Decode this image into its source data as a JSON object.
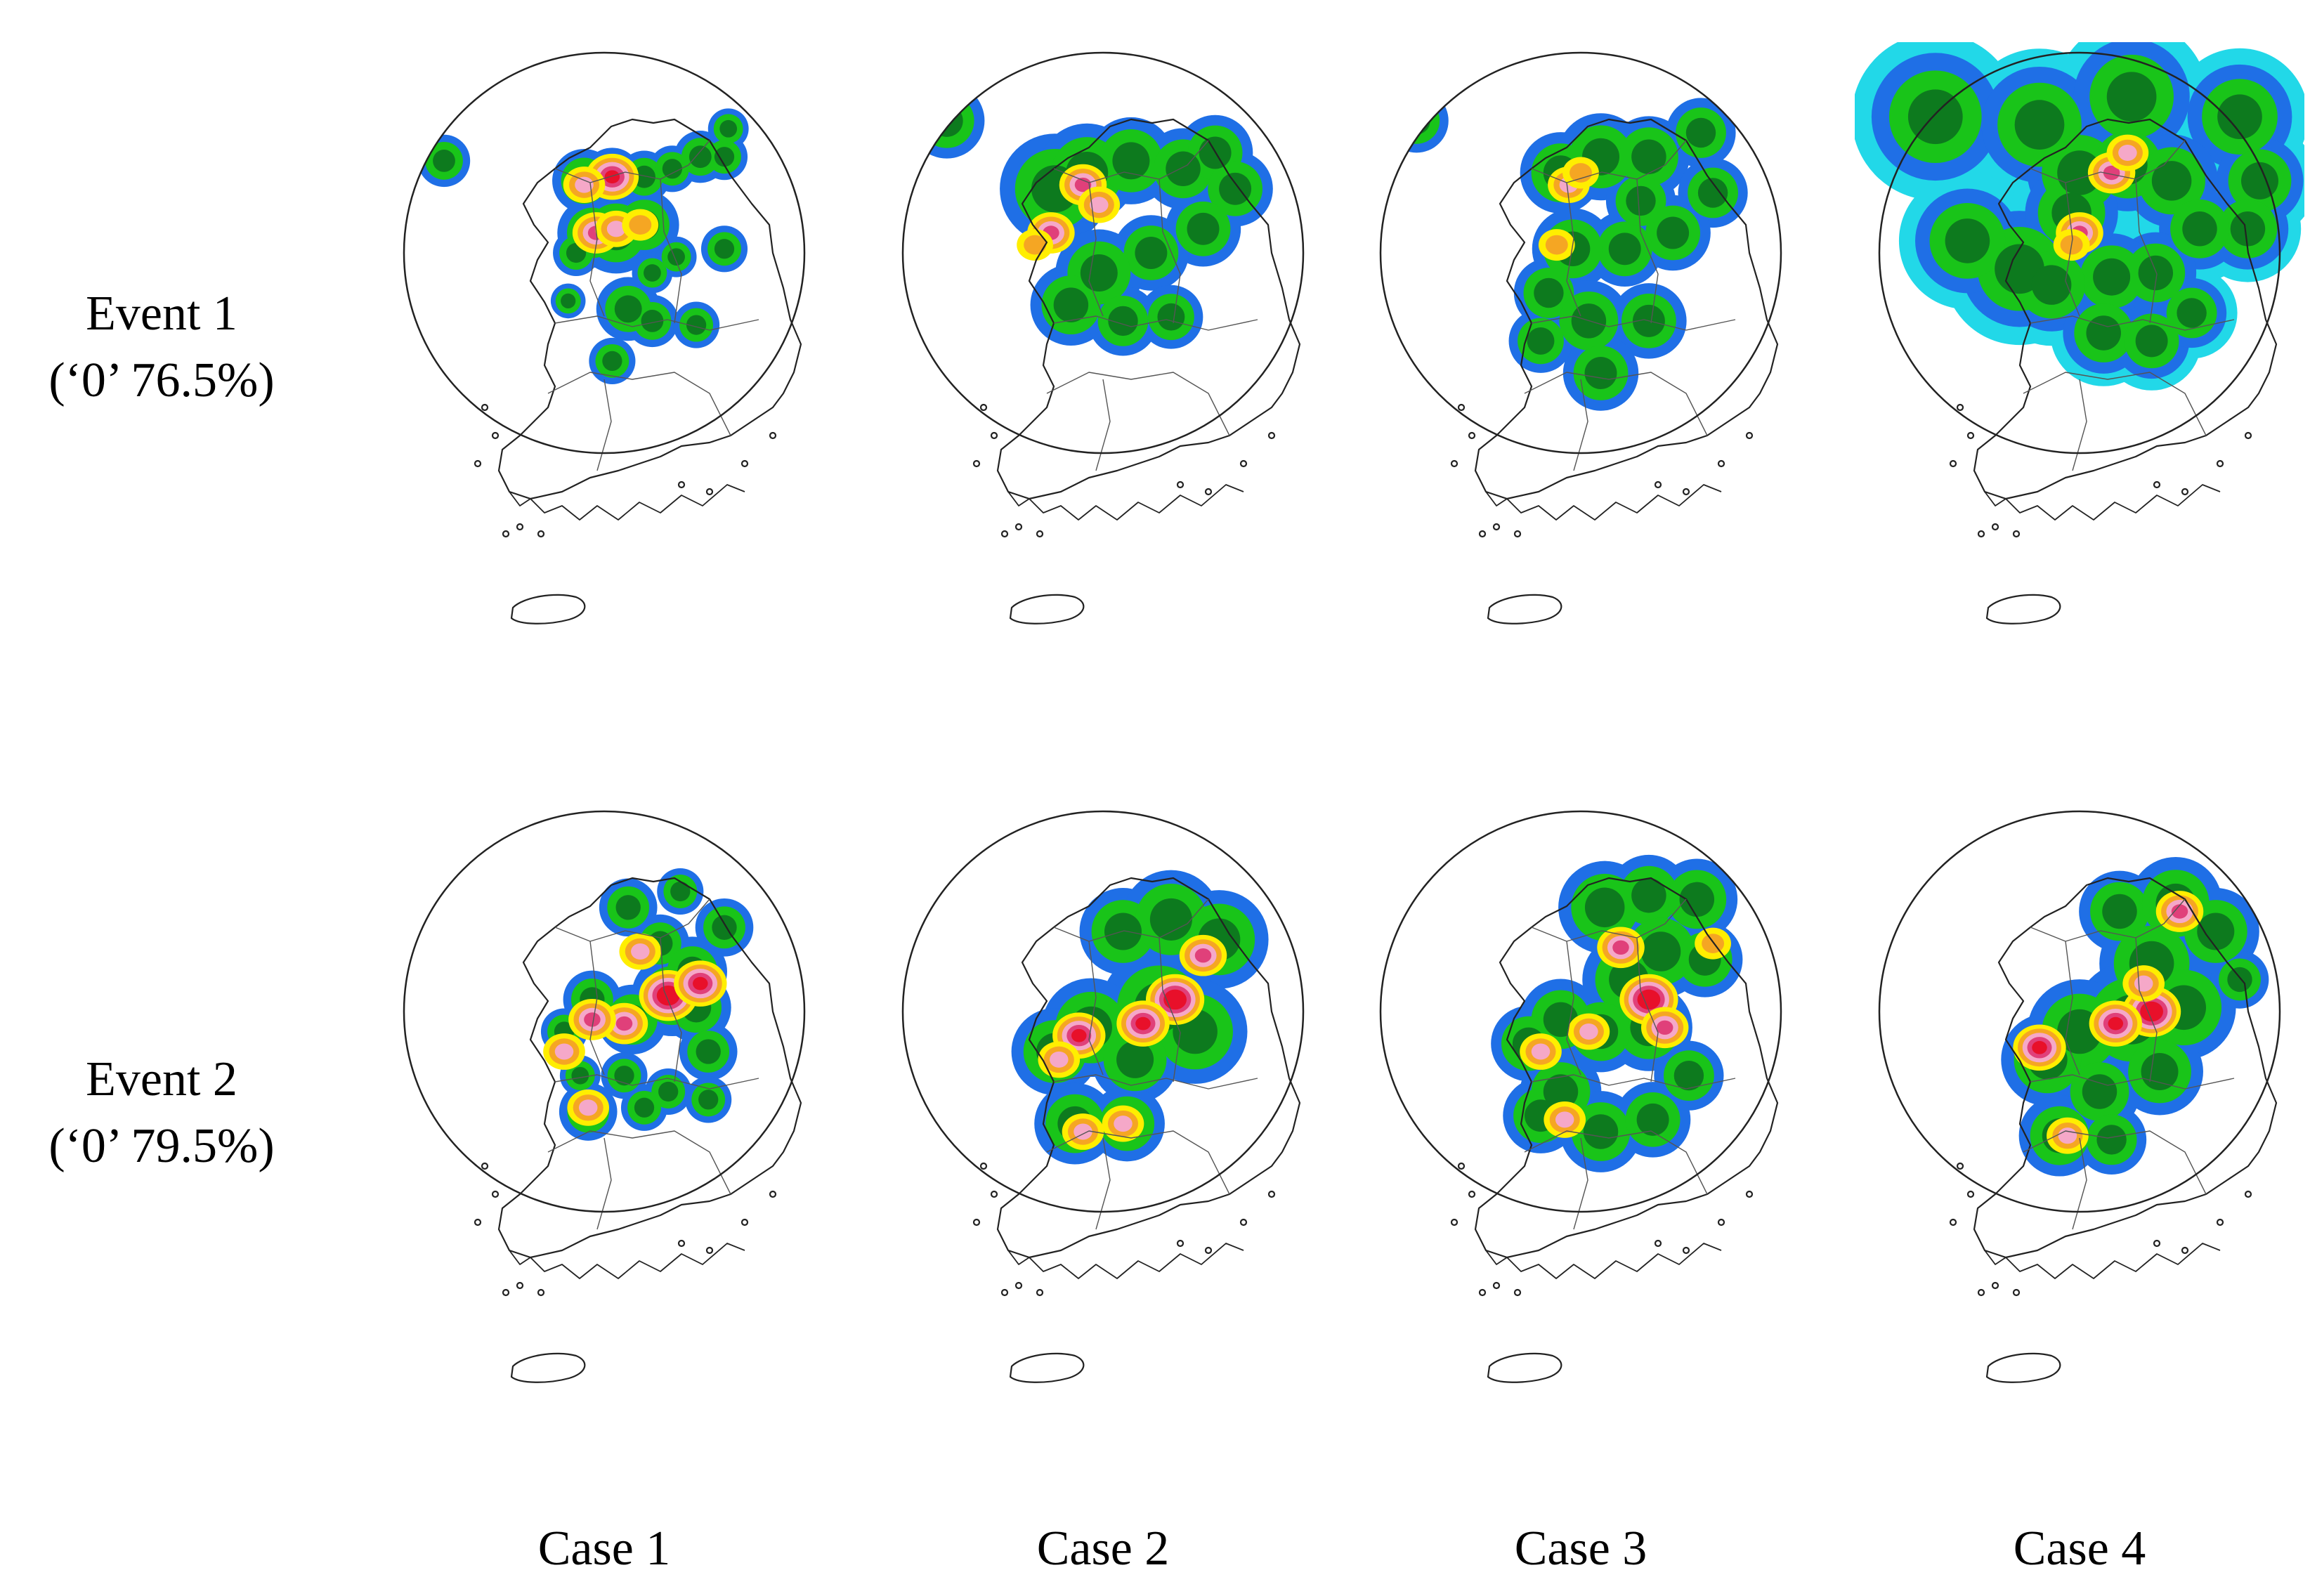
{
  "rows": [
    {
      "event": "Event 1",
      "zero_ratio": "(‘0’ 76.5%)"
    },
    {
      "event": "Event 2",
      "zero_ratio": "(‘0’ 79.5%)"
    }
  ],
  "columns": [
    "Case 1",
    "Case 2",
    "Case 3",
    "Case 4"
  ],
  "colors": {
    "cyan": "#22d8e8",
    "blue": "#1f6fe6",
    "green": "#19c419",
    "darkgreen": "#0d7a1e",
    "yellow": "#ffee00",
    "orange": "#f5a623",
    "pink": "#f5a8c8",
    "magenta": "#e0407a",
    "red": "#e8102a"
  },
  "panels": [
    {
      "event": 1,
      "case": 1,
      "cells": [
        [
          0.1,
          0.27,
          0.09
        ],
        [
          0.45,
          0.32,
          0.11
        ],
        [
          0.52,
          0.31,
          0.1
        ],
        [
          0.6,
          0.31,
          0.09
        ],
        [
          0.67,
          0.29,
          0.08
        ],
        [
          0.74,
          0.26,
          0.09
        ],
        [
          0.8,
          0.26,
          0.08
        ],
        [
          0.81,
          0.19,
          0.07
        ],
        [
          0.6,
          0.43,
          0.12
        ],
        [
          0.53,
          0.45,
          0.14
        ],
        [
          0.47,
          0.45,
          0.12
        ],
        [
          0.43,
          0.5,
          0.08
        ],
        [
          0.62,
          0.55,
          0.07
        ],
        [
          0.68,
          0.51,
          0.07
        ],
        [
          0.8,
          0.49,
          0.08
        ],
        [
          0.56,
          0.64,
          0.11
        ],
        [
          0.62,
          0.67,
          0.09
        ],
        [
          0.73,
          0.68,
          0.08
        ],
        [
          0.52,
          0.77,
          0.08
        ],
        [
          0.41,
          0.62,
          0.06
        ]
      ],
      "peaks": [
        [
          0.52,
          0.31,
          5
        ],
        [
          0.48,
          0.45,
          4
        ],
        [
          0.53,
          0.44,
          3
        ],
        [
          0.45,
          0.33,
          3
        ],
        [
          0.59,
          0.43,
          2
        ]
      ]
    },
    {
      "event": 1,
      "case": 2,
      "cells": [
        [
          0.11,
          0.17,
          0.13
        ],
        [
          0.38,
          0.34,
          0.19
        ],
        [
          0.46,
          0.3,
          0.17
        ],
        [
          0.57,
          0.27,
          0.15
        ],
        [
          0.7,
          0.29,
          0.14
        ],
        [
          0.78,
          0.25,
          0.13
        ],
        [
          0.83,
          0.34,
          0.13
        ],
        [
          0.75,
          0.44,
          0.13
        ],
        [
          0.62,
          0.5,
          0.13
        ],
        [
          0.49,
          0.55,
          0.15
        ],
        [
          0.42,
          0.63,
          0.14
        ],
        [
          0.55,
          0.67,
          0.12
        ],
        [
          0.67,
          0.66,
          0.11
        ]
      ],
      "peaks": [
        [
          0.45,
          0.33,
          4
        ],
        [
          0.37,
          0.45,
          4
        ],
        [
          0.49,
          0.38,
          3
        ],
        [
          0.33,
          0.48,
          2
        ]
      ]
    },
    {
      "event": 1,
      "case": 3,
      "cells": [
        [
          0.09,
          0.17,
          0.11
        ],
        [
          0.45,
          0.3,
          0.14
        ],
        [
          0.55,
          0.26,
          0.15
        ],
        [
          0.67,
          0.26,
          0.14
        ],
        [
          0.8,
          0.2,
          0.12
        ],
        [
          0.83,
          0.35,
          0.12
        ],
        [
          0.73,
          0.45,
          0.13
        ],
        [
          0.61,
          0.49,
          0.13
        ],
        [
          0.48,
          0.49,
          0.14
        ],
        [
          0.42,
          0.6,
          0.12
        ],
        [
          0.52,
          0.67,
          0.14
        ],
        [
          0.67,
          0.67,
          0.13
        ],
        [
          0.55,
          0.8,
          0.13
        ],
        [
          0.4,
          0.72,
          0.11
        ],
        [
          0.65,
          0.37,
          0.12
        ]
      ],
      "peaks": [
        [
          0.47,
          0.33,
          3
        ],
        [
          0.44,
          0.48,
          2
        ],
        [
          0.5,
          0.3,
          2
        ]
      ]
    },
    {
      "event": 1,
      "case": 4,
      "cells": [
        [
          0.14,
          0.16,
          0.22
        ],
        [
          0.4,
          0.18,
          0.2
        ],
        [
          0.63,
          0.11,
          0.2
        ],
        [
          0.9,
          0.16,
          0.18
        ],
        [
          0.95,
          0.32,
          0.15
        ],
        [
          0.92,
          0.44,
          0.14
        ],
        [
          0.35,
          0.54,
          0.2
        ],
        [
          0.22,
          0.47,
          0.18
        ],
        [
          0.5,
          0.3,
          0.18
        ],
        [
          0.62,
          0.28,
          0.16
        ],
        [
          0.73,
          0.32,
          0.16
        ],
        [
          0.8,
          0.44,
          0.14
        ],
        [
          0.69,
          0.55,
          0.14
        ],
        [
          0.58,
          0.56,
          0.15
        ],
        [
          0.43,
          0.58,
          0.16
        ],
        [
          0.56,
          0.7,
          0.14
        ],
        [
          0.68,
          0.72,
          0.13
        ],
        [
          0.78,
          0.65,
          0.12
        ],
        [
          0.48,
          0.4,
          0.16
        ]
      ],
      "peaks": [
        [
          0.58,
          0.3,
          4
        ],
        [
          0.5,
          0.45,
          4
        ],
        [
          0.62,
          0.25,
          3
        ],
        [
          0.48,
          0.48,
          2
        ]
      ]
    },
    {
      "event": 2,
      "case": 1,
      "cells": [
        [
          0.56,
          0.24,
          0.1
        ],
        [
          0.69,
          0.2,
          0.08
        ],
        [
          0.8,
          0.29,
          0.1
        ],
        [
          0.64,
          0.33,
          0.1
        ],
        [
          0.72,
          0.4,
          0.12
        ],
        [
          0.67,
          0.46,
          0.14
        ],
        [
          0.73,
          0.49,
          0.12
        ],
        [
          0.76,
          0.6,
          0.1
        ],
        [
          0.57,
          0.52,
          0.12
        ],
        [
          0.47,
          0.47,
          0.1
        ],
        [
          0.4,
          0.55,
          0.08
        ],
        [
          0.44,
          0.66,
          0.07
        ],
        [
          0.55,
          0.66,
          0.08
        ],
        [
          0.66,
          0.7,
          0.08
        ],
        [
          0.76,
          0.72,
          0.08
        ],
        [
          0.46,
          0.75,
          0.1
        ],
        [
          0.6,
          0.74,
          0.08
        ]
      ],
      "peaks": [
        [
          0.66,
          0.46,
          6
        ],
        [
          0.74,
          0.43,
          5
        ],
        [
          0.55,
          0.53,
          4
        ],
        [
          0.47,
          0.52,
          4
        ],
        [
          0.4,
          0.6,
          3
        ],
        [
          0.46,
          0.74,
          3
        ],
        [
          0.59,
          0.35,
          3
        ]
      ]
    },
    {
      "event": 2,
      "case": 2,
      "cells": [
        [
          0.55,
          0.3,
          0.15
        ],
        [
          0.67,
          0.27,
          0.17
        ],
        [
          0.79,
          0.32,
          0.17
        ],
        [
          0.64,
          0.49,
          0.2
        ],
        [
          0.73,
          0.55,
          0.18
        ],
        [
          0.47,
          0.54,
          0.17
        ],
        [
          0.38,
          0.6,
          0.15
        ],
        [
          0.58,
          0.62,
          0.15
        ],
        [
          0.43,
          0.78,
          0.14
        ],
        [
          0.56,
          0.78,
          0.13
        ]
      ],
      "peaks": [
        [
          0.68,
          0.47,
          6
        ],
        [
          0.6,
          0.53,
          5
        ],
        [
          0.44,
          0.56,
          5
        ],
        [
          0.75,
          0.36,
          4
        ],
        [
          0.45,
          0.8,
          3
        ],
        [
          0.55,
          0.78,
          3
        ],
        [
          0.39,
          0.62,
          3
        ]
      ]
    },
    {
      "event": 2,
      "case": 3,
      "cells": [
        [
          0.56,
          0.24,
          0.16
        ],
        [
          0.67,
          0.21,
          0.14
        ],
        [
          0.79,
          0.22,
          0.14
        ],
        [
          0.7,
          0.35,
          0.16
        ],
        [
          0.81,
          0.37,
          0.13
        ],
        [
          0.62,
          0.42,
          0.16
        ],
        [
          0.67,
          0.54,
          0.15
        ],
        [
          0.55,
          0.55,
          0.14
        ],
        [
          0.45,
          0.52,
          0.14
        ],
        [
          0.37,
          0.58,
          0.13
        ],
        [
          0.45,
          0.7,
          0.14
        ],
        [
          0.4,
          0.76,
          0.13
        ],
        [
          0.55,
          0.8,
          0.14
        ],
        [
          0.68,
          0.77,
          0.13
        ],
        [
          0.77,
          0.66,
          0.12
        ]
      ],
      "peaks": [
        [
          0.67,
          0.47,
          6
        ],
        [
          0.71,
          0.54,
          4
        ],
        [
          0.6,
          0.34,
          4
        ],
        [
          0.52,
          0.55,
          3
        ],
        [
          0.4,
          0.6,
          3
        ],
        [
          0.46,
          0.77,
          3
        ],
        [
          0.83,
          0.33,
          2
        ]
      ]
    },
    {
      "event": 2,
      "case": 4,
      "cells": [
        [
          0.6,
          0.25,
          0.14
        ],
        [
          0.74,
          0.23,
          0.16
        ],
        [
          0.84,
          0.3,
          0.15
        ],
        [
          0.68,
          0.38,
          0.18
        ],
        [
          0.63,
          0.52,
          0.2
        ],
        [
          0.76,
          0.49,
          0.18
        ],
        [
          0.5,
          0.55,
          0.18
        ],
        [
          0.42,
          0.62,
          0.16
        ],
        [
          0.55,
          0.7,
          0.14
        ],
        [
          0.7,
          0.65,
          0.15
        ],
        [
          0.45,
          0.81,
          0.14
        ],
        [
          0.58,
          0.82,
          0.12
        ],
        [
          0.9,
          0.42,
          0.1
        ]
      ],
      "peaks": [
        [
          0.68,
          0.5,
          6
        ],
        [
          0.59,
          0.53,
          5
        ],
        [
          0.4,
          0.59,
          5
        ],
        [
          0.75,
          0.25,
          4
        ],
        [
          0.66,
          0.43,
          3
        ],
        [
          0.47,
          0.81,
          3
        ]
      ]
    }
  ]
}
